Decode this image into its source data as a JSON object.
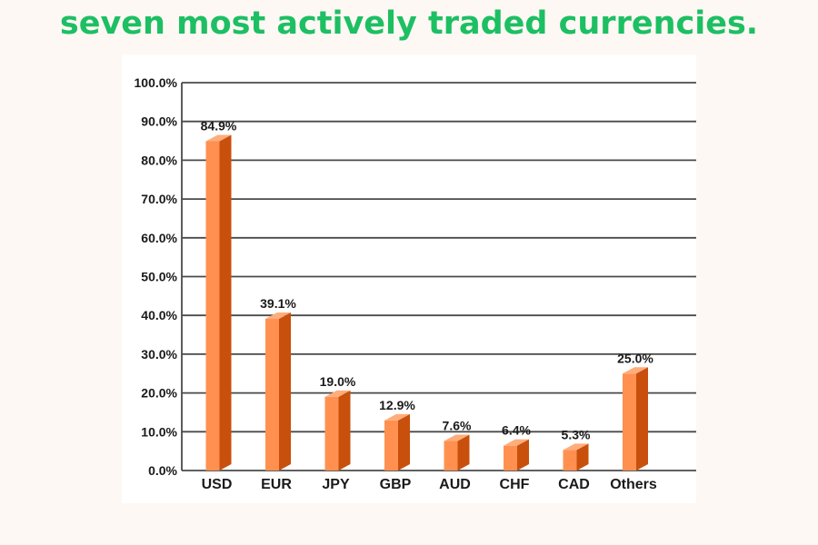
{
  "title": "seven most actively traded currencies.",
  "chart_data": {
    "type": "bar",
    "title": "",
    "xlabel": "",
    "ylabel": "",
    "categories": [
      "USD",
      "EUR",
      "JPY",
      "GBP",
      "AUD",
      "CHF",
      "CAD",
      "Others"
    ],
    "values": [
      84.9,
      39.1,
      19.0,
      12.9,
      7.6,
      6.4,
      5.3,
      25.0
    ],
    "value_labels": [
      "84.9%",
      "39.1%",
      "19.0%",
      "12.9%",
      "7.6%",
      "6.4%",
      "5.3%",
      "25.0%"
    ],
    "ylim": [
      0,
      100
    ],
    "yticks": [
      0,
      10,
      20,
      30,
      40,
      50,
      60,
      70,
      80,
      90,
      100
    ],
    "ytick_labels": [
      "0.0%",
      "10.0%",
      "20.0%",
      "30.0%",
      "40.0%",
      "50.0%",
      "60.0%",
      "70.0%",
      "80.0%",
      "90.0%",
      "100.0%"
    ],
    "grid": true,
    "style": "3d",
    "colors": {
      "bar_front": "#ff9050",
      "bar_side": "#c8500c",
      "bar_top": "#ffad7a",
      "grid": "#4a4a4a",
      "title": "#1dbf63"
    }
  }
}
